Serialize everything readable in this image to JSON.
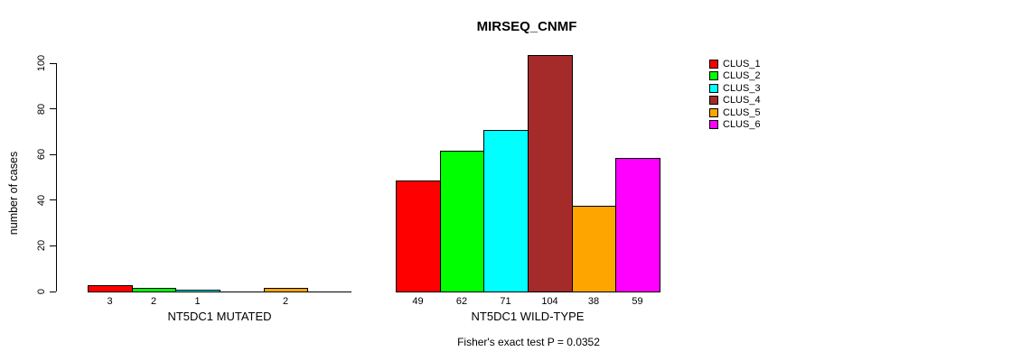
{
  "chart_data": {
    "type": "bar",
    "title": "MIRSEQ_CNMF",
    "ylabel": "number of cases",
    "xlabel": "",
    "ylim": [
      0,
      100
    ],
    "yticks": [
      0,
      20,
      40,
      60,
      80,
      100
    ],
    "grid": false,
    "legend_position": "right",
    "bar_value_labels": true,
    "categories": [
      "NT5DC1 MUTATED",
      "NT5DC1 WILD-TYPE"
    ],
    "series": [
      {
        "name": "CLUS_1",
        "color": "#FF0000",
        "values": [
          3,
          49
        ]
      },
      {
        "name": "CLUS_2",
        "color": "#00FF00",
        "values": [
          2,
          62
        ]
      },
      {
        "name": "CLUS_3",
        "color": "#00FFFF",
        "values": [
          1,
          71
        ]
      },
      {
        "name": "CLUS_4",
        "color": "#A52A2A",
        "values": [
          0,
          104
        ]
      },
      {
        "name": "CLUS_5",
        "color": "#FFA500",
        "values": [
          2,
          38
        ]
      },
      {
        "name": "CLUS_6",
        "color": "#FF00FF",
        "values": [
          0,
          59
        ]
      }
    ],
    "annotation": "Fisher's exact test P = 0.0352",
    "colors": {
      "background": "#FFFFFF",
      "axis": "#000000",
      "text": "#000000"
    }
  }
}
